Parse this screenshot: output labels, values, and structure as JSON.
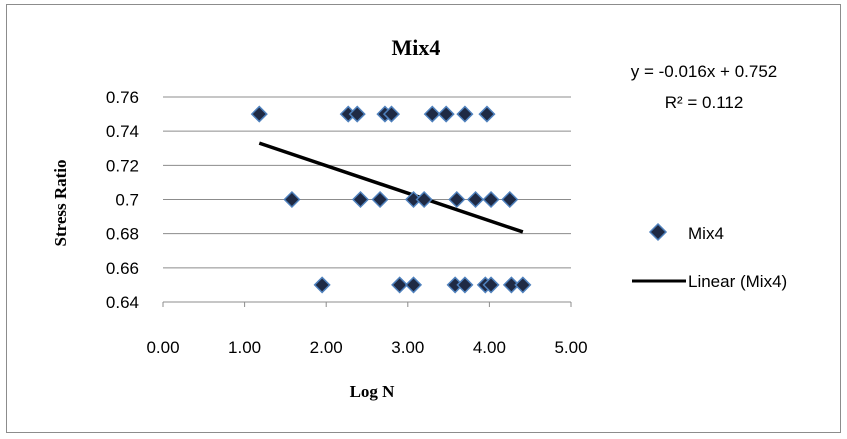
{
  "chart_data": {
    "type": "scatter",
    "title": "Mix4",
    "xlabel": "Log N",
    "ylabel": "Stress Ratio",
    "xlim": [
      0,
      5
    ],
    "ylim": [
      0.64,
      0.76
    ],
    "x_ticks": [
      "0.00",
      "1.00",
      "2.00",
      "3.00",
      "4.00",
      "5.00"
    ],
    "y_ticks": [
      "0.64",
      "0.66",
      "0.68",
      "0.7",
      "0.72",
      "0.74",
      "0.76"
    ],
    "y_tick_values": [
      0.64,
      0.66,
      0.68,
      0.7,
      0.72,
      0.74,
      0.76
    ],
    "grid": "horizontal",
    "legend_position": "right",
    "series": [
      {
        "name": "Mix4",
        "marker": "diamond",
        "color": "#1f2a44",
        "edge_color": "#4f81bd",
        "points": [
          [
            1.18,
            0.75
          ],
          [
            2.27,
            0.75
          ],
          [
            2.38,
            0.75
          ],
          [
            2.72,
            0.75
          ],
          [
            2.8,
            0.75
          ],
          [
            3.3,
            0.75
          ],
          [
            3.47,
            0.75
          ],
          [
            3.7,
            0.75
          ],
          [
            3.97,
            0.75
          ],
          [
            1.58,
            0.7
          ],
          [
            2.42,
            0.7
          ],
          [
            2.66,
            0.7
          ],
          [
            3.07,
            0.7
          ],
          [
            3.2,
            0.7
          ],
          [
            3.6,
            0.7
          ],
          [
            3.83,
            0.7
          ],
          [
            4.02,
            0.7
          ],
          [
            4.25,
            0.7
          ],
          [
            1.95,
            0.65
          ],
          [
            2.9,
            0.65
          ],
          [
            3.07,
            0.65
          ],
          [
            3.58,
            0.65
          ],
          [
            3.7,
            0.65
          ],
          [
            3.95,
            0.65
          ],
          [
            4.02,
            0.65
          ],
          [
            4.27,
            0.65
          ],
          [
            4.41,
            0.65
          ]
        ]
      },
      {
        "name": "Linear (Mix4)",
        "type": "line",
        "color": "#000000",
        "x": [
          1.18,
          4.41
        ],
        "y": [
          0.733,
          0.681
        ]
      }
    ],
    "trendline": {
      "equation": "y = -0.016x + 0.752",
      "r_squared": "R² = 0.112"
    }
  }
}
